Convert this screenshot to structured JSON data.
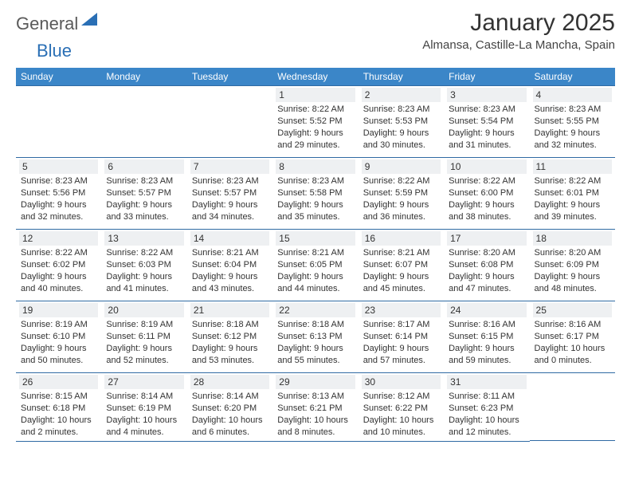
{
  "brand": {
    "part1": "General",
    "part2": "Blue"
  },
  "title": "January 2025",
  "location": "Almansa, Castille-La Mancha, Spain",
  "colors": {
    "header_bg": "#3b86c8",
    "header_text": "#ffffff",
    "border": "#2f6aa3",
    "daynum_bg": "#eef0f2",
    "text": "#333333",
    "brand_gray": "#5a5a5a",
    "brand_blue": "#2a6fb5"
  },
  "weekdays": [
    "Sunday",
    "Monday",
    "Tuesday",
    "Wednesday",
    "Thursday",
    "Friday",
    "Saturday"
  ],
  "weeks": [
    [
      {
        "day": "",
        "sunrise": "",
        "sunset": "",
        "daylight": ""
      },
      {
        "day": "",
        "sunrise": "",
        "sunset": "",
        "daylight": ""
      },
      {
        "day": "",
        "sunrise": "",
        "sunset": "",
        "daylight": ""
      },
      {
        "day": "1",
        "sunrise": "Sunrise: 8:22 AM",
        "sunset": "Sunset: 5:52 PM",
        "daylight": "Daylight: 9 hours and 29 minutes."
      },
      {
        "day": "2",
        "sunrise": "Sunrise: 8:23 AM",
        "sunset": "Sunset: 5:53 PM",
        "daylight": "Daylight: 9 hours and 30 minutes."
      },
      {
        "day": "3",
        "sunrise": "Sunrise: 8:23 AM",
        "sunset": "Sunset: 5:54 PM",
        "daylight": "Daylight: 9 hours and 31 minutes."
      },
      {
        "day": "4",
        "sunrise": "Sunrise: 8:23 AM",
        "sunset": "Sunset: 5:55 PM",
        "daylight": "Daylight: 9 hours and 32 minutes."
      }
    ],
    [
      {
        "day": "5",
        "sunrise": "Sunrise: 8:23 AM",
        "sunset": "Sunset: 5:56 PM",
        "daylight": "Daylight: 9 hours and 32 minutes."
      },
      {
        "day": "6",
        "sunrise": "Sunrise: 8:23 AM",
        "sunset": "Sunset: 5:57 PM",
        "daylight": "Daylight: 9 hours and 33 minutes."
      },
      {
        "day": "7",
        "sunrise": "Sunrise: 8:23 AM",
        "sunset": "Sunset: 5:57 PM",
        "daylight": "Daylight: 9 hours and 34 minutes."
      },
      {
        "day": "8",
        "sunrise": "Sunrise: 8:23 AM",
        "sunset": "Sunset: 5:58 PM",
        "daylight": "Daylight: 9 hours and 35 minutes."
      },
      {
        "day": "9",
        "sunrise": "Sunrise: 8:22 AM",
        "sunset": "Sunset: 5:59 PM",
        "daylight": "Daylight: 9 hours and 36 minutes."
      },
      {
        "day": "10",
        "sunrise": "Sunrise: 8:22 AM",
        "sunset": "Sunset: 6:00 PM",
        "daylight": "Daylight: 9 hours and 38 minutes."
      },
      {
        "day": "11",
        "sunrise": "Sunrise: 8:22 AM",
        "sunset": "Sunset: 6:01 PM",
        "daylight": "Daylight: 9 hours and 39 minutes."
      }
    ],
    [
      {
        "day": "12",
        "sunrise": "Sunrise: 8:22 AM",
        "sunset": "Sunset: 6:02 PM",
        "daylight": "Daylight: 9 hours and 40 minutes."
      },
      {
        "day": "13",
        "sunrise": "Sunrise: 8:22 AM",
        "sunset": "Sunset: 6:03 PM",
        "daylight": "Daylight: 9 hours and 41 minutes."
      },
      {
        "day": "14",
        "sunrise": "Sunrise: 8:21 AM",
        "sunset": "Sunset: 6:04 PM",
        "daylight": "Daylight: 9 hours and 43 minutes."
      },
      {
        "day": "15",
        "sunrise": "Sunrise: 8:21 AM",
        "sunset": "Sunset: 6:05 PM",
        "daylight": "Daylight: 9 hours and 44 minutes."
      },
      {
        "day": "16",
        "sunrise": "Sunrise: 8:21 AM",
        "sunset": "Sunset: 6:07 PM",
        "daylight": "Daylight: 9 hours and 45 minutes."
      },
      {
        "day": "17",
        "sunrise": "Sunrise: 8:20 AM",
        "sunset": "Sunset: 6:08 PM",
        "daylight": "Daylight: 9 hours and 47 minutes."
      },
      {
        "day": "18",
        "sunrise": "Sunrise: 8:20 AM",
        "sunset": "Sunset: 6:09 PM",
        "daylight": "Daylight: 9 hours and 48 minutes."
      }
    ],
    [
      {
        "day": "19",
        "sunrise": "Sunrise: 8:19 AM",
        "sunset": "Sunset: 6:10 PM",
        "daylight": "Daylight: 9 hours and 50 minutes."
      },
      {
        "day": "20",
        "sunrise": "Sunrise: 8:19 AM",
        "sunset": "Sunset: 6:11 PM",
        "daylight": "Daylight: 9 hours and 52 minutes."
      },
      {
        "day": "21",
        "sunrise": "Sunrise: 8:18 AM",
        "sunset": "Sunset: 6:12 PM",
        "daylight": "Daylight: 9 hours and 53 minutes."
      },
      {
        "day": "22",
        "sunrise": "Sunrise: 8:18 AM",
        "sunset": "Sunset: 6:13 PM",
        "daylight": "Daylight: 9 hours and 55 minutes."
      },
      {
        "day": "23",
        "sunrise": "Sunrise: 8:17 AM",
        "sunset": "Sunset: 6:14 PM",
        "daylight": "Daylight: 9 hours and 57 minutes."
      },
      {
        "day": "24",
        "sunrise": "Sunrise: 8:16 AM",
        "sunset": "Sunset: 6:15 PM",
        "daylight": "Daylight: 9 hours and 59 minutes."
      },
      {
        "day": "25",
        "sunrise": "Sunrise: 8:16 AM",
        "sunset": "Sunset: 6:17 PM",
        "daylight": "Daylight: 10 hours and 0 minutes."
      }
    ],
    [
      {
        "day": "26",
        "sunrise": "Sunrise: 8:15 AM",
        "sunset": "Sunset: 6:18 PM",
        "daylight": "Daylight: 10 hours and 2 minutes."
      },
      {
        "day": "27",
        "sunrise": "Sunrise: 8:14 AM",
        "sunset": "Sunset: 6:19 PM",
        "daylight": "Daylight: 10 hours and 4 minutes."
      },
      {
        "day": "28",
        "sunrise": "Sunrise: 8:14 AM",
        "sunset": "Sunset: 6:20 PM",
        "daylight": "Daylight: 10 hours and 6 minutes."
      },
      {
        "day": "29",
        "sunrise": "Sunrise: 8:13 AM",
        "sunset": "Sunset: 6:21 PM",
        "daylight": "Daylight: 10 hours and 8 minutes."
      },
      {
        "day": "30",
        "sunrise": "Sunrise: 8:12 AM",
        "sunset": "Sunset: 6:22 PM",
        "daylight": "Daylight: 10 hours and 10 minutes."
      },
      {
        "day": "31",
        "sunrise": "Sunrise: 8:11 AM",
        "sunset": "Sunset: 6:23 PM",
        "daylight": "Daylight: 10 hours and 12 minutes."
      },
      {
        "day": "",
        "sunrise": "",
        "sunset": "",
        "daylight": ""
      }
    ]
  ]
}
